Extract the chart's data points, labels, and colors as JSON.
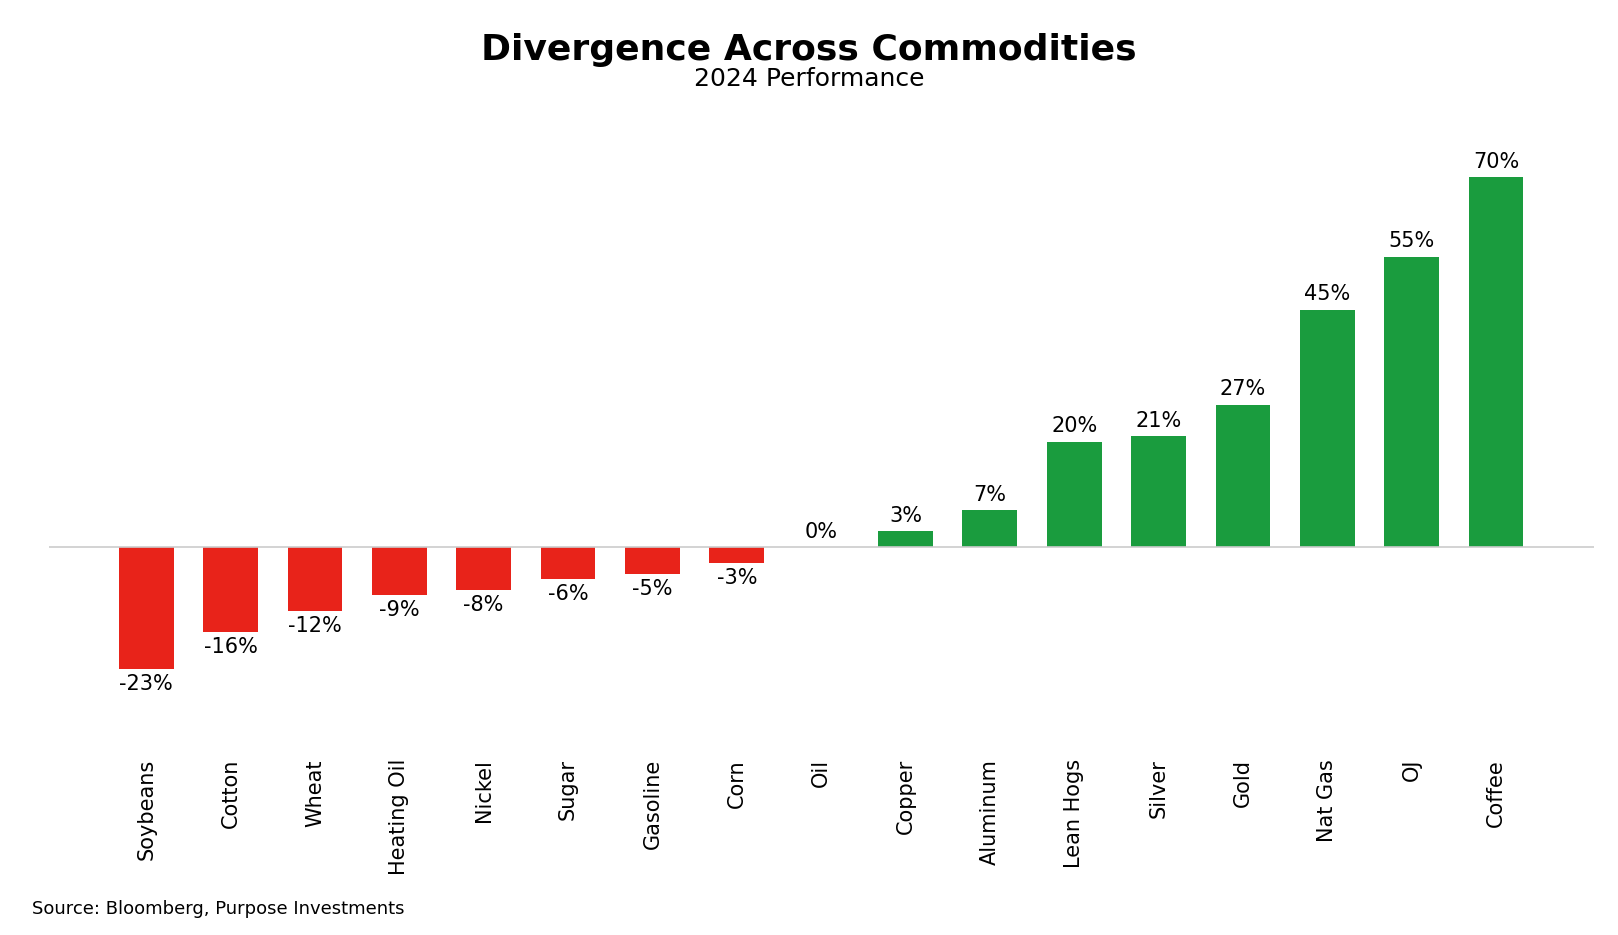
{
  "title": "Divergence Across Commodities",
  "subtitle": "2024 Performance",
  "source": "Source: Bloomberg, Purpose Investments",
  "categories": [
    "Soybeans",
    "Cotton",
    "Wheat",
    "Heating Oil",
    "Nickel",
    "Sugar",
    "Gasoline",
    "Corn",
    "Oil",
    "Copper",
    "Aluminum",
    "Lean Hogs",
    "Silver",
    "Gold",
    "Nat Gas",
    "OJ",
    "Coffee"
  ],
  "values": [
    -23,
    -16,
    -12,
    -9,
    -8,
    -6,
    -5,
    -3,
    0,
    3,
    7,
    20,
    21,
    27,
    45,
    55,
    70
  ],
  "labels": [
    "-23%",
    "-16%",
    "-12%",
    "-9%",
    "-8%",
    "-6%",
    "-5%",
    "-3%",
    "0%",
    "3%",
    "7%",
    "20%",
    "21%",
    "27%",
    "45%",
    "55%",
    "70%"
  ],
  "bar_color_negative": "#e8231a",
  "bar_color_positive": "#1a9c3e",
  "background_color": "#ffffff",
  "title_fontsize": 26,
  "subtitle_fontsize": 18,
  "label_fontsize": 15,
  "tick_fontsize": 15,
  "source_fontsize": 13,
  "ylim": [
    -38,
    85
  ],
  "bar_width": 0.65
}
